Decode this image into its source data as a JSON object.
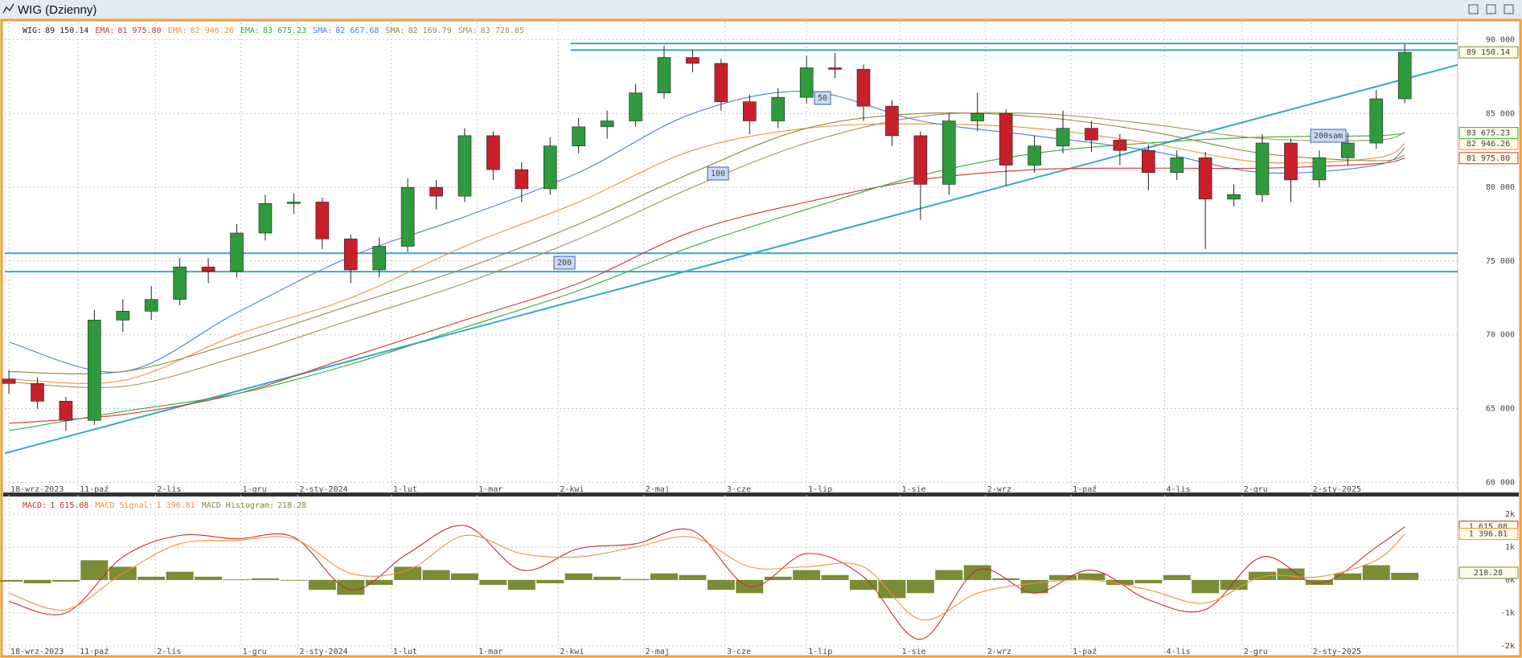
{
  "window": {
    "title": "WIG (Dzienny)"
  },
  "chart_data": [
    {
      "type": "candlestick",
      "name": "WIG:",
      "x": [
        0,
        7,
        14,
        21,
        28,
        35,
        42,
        49,
        56,
        63,
        70,
        77,
        84,
        91,
        98,
        105,
        112,
        119,
        126,
        133,
        140,
        147,
        154,
        161,
        168,
        175,
        182,
        189,
        196,
        203,
        210,
        217,
        224,
        231,
        238,
        245,
        252,
        259,
        266,
        273,
        280,
        287,
        294,
        301,
        308,
        315,
        322,
        329,
        336,
        343
      ],
      "open": [
        67000,
        66700,
        65500,
        64200,
        71000,
        71600,
        72400,
        74600,
        74300,
        76900,
        78900,
        79000,
        76500,
        74400,
        76000,
        80000,
        79400,
        83500,
        81200,
        79900,
        82800,
        84100,
        84500,
        86400,
        88800,
        88400,
        85800,
        84500,
        86100,
        88100,
        88000,
        85500,
        83500,
        80200,
        84500,
        85000,
        81500,
        82800,
        84000,
        83200,
        82500,
        81000,
        82000,
        79200,
        79500,
        83000,
        80500,
        82000,
        83000,
        86000
      ],
      "high": [
        67600,
        67100,
        65800,
        71700,
        72400,
        73300,
        75200,
        75200,
        77500,
        79500,
        79600,
        79300,
        76800,
        76600,
        80600,
        80500,
        84000,
        83800,
        81700,
        83400,
        84700,
        85200,
        87000,
        89600,
        89300,
        88700,
        86300,
        86700,
        88900,
        89100,
        88300,
        85900,
        83800,
        85000,
        86400,
        85300,
        83500,
        85200,
        84500,
        83600,
        82900,
        82500,
        82400,
        80200,
        83600,
        83300,
        82500,
        83700,
        86600,
        89700
      ],
      "low": [
        66000,
        65000,
        63500,
        63900,
        70200,
        71000,
        72000,
        73500,
        73900,
        76400,
        78200,
        75800,
        73500,
        73900,
        75600,
        78500,
        79000,
        80500,
        79000,
        79500,
        82300,
        83300,
        84100,
        86000,
        87800,
        85200,
        83600,
        84000,
        85700,
        87400,
        84500,
        82800,
        77800,
        79500,
        83800,
        80100,
        81000,
        82300,
        82400,
        81500,
        79800,
        80500,
        75800,
        78700,
        79000,
        79000,
        80000,
        81500,
        82600,
        85700
      ],
      "close": [
        66700,
        65500,
        64200,
        71000,
        71600,
        72400,
        74600,
        74300,
        76900,
        78900,
        79000,
        76500,
        74400,
        76000,
        80000,
        79400,
        83500,
        81200,
        79900,
        82800,
        84100,
        84500,
        86400,
        88800,
        88400,
        85800,
        84500,
        86100,
        88100,
        88000,
        85500,
        83500,
        80200,
        84500,
        85000,
        81500,
        82800,
        84000,
        83200,
        82500,
        81000,
        82000,
        79200,
        79500,
        83000,
        80500,
        82000,
        83000,
        86000,
        89150.14
      ],
      "up_color": "#2e9a3c",
      "down_color": "#c8202a",
      "last": {
        "value": 89150.14,
        "label": "89 150.14"
      },
      "overlays": [
        {
          "name": "EMA:",
          "color": "#d03535",
          "axis_box": true,
          "x": [
            0,
            28,
            56,
            84,
            112,
            140,
            168,
            196,
            224,
            252,
            280,
            308,
            336,
            343
          ],
          "values": [
            64000,
            64600,
            66000,
            68500,
            71000,
            73500,
            77000,
            79000,
            80500,
            81200,
            81300,
            81300,
            81600,
            81975.8
          ],
          "last": {
            "value": 81975.8,
            "label": "81 975.80"
          }
        },
        {
          "name": "EMA:",
          "color": "#f0903c",
          "axis_box": true,
          "x": [
            0,
            28,
            56,
            84,
            112,
            140,
            168,
            196,
            224,
            252,
            280,
            308,
            336,
            343
          ],
          "values": [
            67000,
            66900,
            70000,
            72500,
            76000,
            79000,
            82500,
            84000,
            84300,
            84000,
            83000,
            81700,
            82000,
            82946.26
          ],
          "last": {
            "value": 82946.26,
            "label": "82 946.26"
          }
        },
        {
          "name": "EMA:",
          "color": "#35a83a",
          "axis_box": true,
          "x": [
            0,
            28,
            56,
            84,
            112,
            140,
            168,
            196,
            224,
            252,
            280,
            308,
            336,
            343
          ],
          "values": [
            63500,
            64800,
            66000,
            68000,
            70500,
            73000,
            76000,
            78500,
            80800,
            82300,
            83000,
            83400,
            83500,
            83675.23
          ],
          "last": {
            "value": 83675.23,
            "label": "83 675.23"
          }
        },
        {
          "name": "SMA:",
          "color": "#4a82cc",
          "axis_box": false,
          "x": [
            0,
            28,
            56,
            84,
            112,
            140,
            168,
            196,
            224,
            252,
            280,
            308,
            336,
            343
          ],
          "values": [
            69500,
            67500,
            71500,
            75300,
            78000,
            81000,
            85000,
            86500,
            84500,
            83500,
            82500,
            81000,
            81500,
            82667.68
          ],
          "last": {
            "value": 82667.68,
            "label": "82 667.68"
          }
        },
        {
          "name": "SMA:",
          "color": "#8a8a3c",
          "axis_box": false,
          "x": [
            0,
            28,
            56,
            84,
            112,
            140,
            168,
            196,
            224,
            252,
            280,
            308,
            336,
            343
          ],
          "values": [
            67500,
            67500,
            69500,
            72000,
            74500,
            77500,
            81000,
            84000,
            85000,
            84800,
            83800,
            82300,
            81800,
            82169.79
          ],
          "last": {
            "value": 82169.79,
            "label": "82 169.79"
          }
        },
        {
          "name": "SMA:",
          "color": "#a88e5a",
          "axis_box": false,
          "x": [
            0,
            28,
            56,
            84,
            112,
            140,
            168,
            196,
            224,
            252,
            280,
            308,
            336,
            343
          ],
          "values": [
            66800,
            66500,
            68500,
            71000,
            73500,
            76500,
            80000,
            83000,
            84800,
            85000,
            84300,
            83300,
            83200,
            83728.85
          ],
          "last": {
            "value": 83728.85,
            "label": "83 728.85"
          }
        }
      ],
      "lines": [
        {
          "x": [
            -1,
            356
          ],
          "y": [
            61970,
            88300
          ]
        },
        {
          "x": [
            138,
            356
          ],
          "y": [
            89750,
            89750
          ]
        },
        {
          "x": [
            138,
            356
          ],
          "y": [
            89300,
            89300
          ]
        },
        {
          "x": [
            -1,
            356
          ],
          "y": [
            75530,
            75530
          ]
        },
        {
          "x": [
            -1,
            356
          ],
          "y": [
            74280,
            74280
          ]
        }
      ],
      "line_color": "#35a8c8",
      "annotations": [
        "50",
        "100",
        "200",
        "200sam"
      ],
      "xlim": [
        -1,
        356
      ],
      "xticks": [
        {
          "value": 0,
          "label": "18-wrz-2023"
        },
        {
          "value": 17,
          "label": "11-paź"
        },
        {
          "value": 36,
          "label": "2-lis"
        },
        {
          "value": 57,
          "label": "1-gru"
        },
        {
          "value": 71,
          "label": "2-sty-2024"
        },
        {
          "value": 94,
          "label": "1-lut"
        },
        {
          "value": 115,
          "label": "1-mar"
        },
        {
          "value": 135,
          "label": "2-kwi"
        },
        {
          "value": 156,
          "label": "2-maj"
        },
        {
          "value": 176,
          "label": "3-cze"
        },
        {
          "value": 196,
          "label": "1-lip"
        },
        {
          "value": 219,
          "label": "1-sie"
        },
        {
          "value": 240,
          "label": "2-wrz"
        },
        {
          "value": 261,
          "label": "1-paź"
        },
        {
          "value": 284,
          "label": "4-lis"
        },
        {
          "value": 303,
          "label": "2-gru"
        },
        {
          "value": 320,
          "label": "2-sty-2025"
        }
      ],
      "ylim": [
        59800,
        90900
      ],
      "yticks": [
        {
          "value": 60000,
          "label": "60 000"
        },
        {
          "value": 65000,
          "label": "65 000"
        },
        {
          "value": 70000,
          "label": "70 000"
        },
        {
          "value": 75000,
          "label": "75 000"
        },
        {
          "value": 80000,
          "label": "80 000"
        },
        {
          "value": 85000,
          "label": "85 000"
        },
        {
          "value": 90000,
          "label": "90 000"
        }
      ],
      "grid": true
    },
    {
      "type": "macd",
      "series": [
        {
          "name": "MACD:",
          "color": "#c03030",
          "x": [
            0,
            14,
            28,
            42,
            56,
            70,
            84,
            98,
            112,
            126,
            140,
            154,
            168,
            182,
            196,
            210,
            224,
            238,
            252,
            266,
            280,
            294,
            308,
            322,
            336,
            343
          ],
          "values": [
            -650,
            -1000,
            700,
            1350,
            1250,
            1300,
            -300,
            800,
            1650,
            300,
            950,
            1100,
            1500,
            -200,
            800,
            100,
            -1800,
            300,
            -400,
            300,
            -600,
            -900,
            700,
            -100,
            1000,
            1615.08
          ],
          "last": {
            "value": 1615.08,
            "label": "1 615.08"
          }
        },
        {
          "name": "MACD Signal:",
          "color": "#f0903c",
          "x": [
            0,
            14,
            28,
            42,
            56,
            70,
            84,
            98,
            112,
            126,
            140,
            154,
            168,
            182,
            196,
            210,
            224,
            238,
            252,
            266,
            280,
            294,
            308,
            322,
            336,
            343
          ],
          "values": [
            -400,
            -900,
            200,
            1100,
            1200,
            1250,
            200,
            300,
            1350,
            800,
            700,
            1000,
            1300,
            400,
            400,
            400,
            -1200,
            -400,
            -100,
            0,
            -300,
            -700,
            100,
            100,
            600,
            1396.81
          ],
          "last": {
            "value": 1396.81,
            "label": "1 396.81"
          }
        },
        {
          "name": "MACD Histogram:",
          "color": "#7a8c34",
          "type": "bar",
          "x": [
            0,
            7,
            14,
            21,
            28,
            35,
            42,
            49,
            56,
            63,
            70,
            77,
            84,
            91,
            98,
            105,
            112,
            119,
            126,
            133,
            140,
            147,
            154,
            161,
            168,
            175,
            182,
            189,
            196,
            203,
            210,
            217,
            224,
            231,
            238,
            245,
            252,
            259,
            266,
            273,
            280,
            287,
            294,
            301,
            308,
            315,
            322,
            329,
            336,
            343
          ],
          "values": [
            -50,
            -100,
            -50,
            600,
            400,
            100,
            250,
            100,
            20,
            50,
            -20,
            -300,
            -450,
            -150,
            400,
            300,
            200,
            -150,
            -300,
            -100,
            200,
            100,
            30,
            200,
            150,
            -300,
            -400,
            100,
            300,
            150,
            -300,
            -550,
            -400,
            300,
            450,
            50,
            -400,
            150,
            200,
            -150,
            -100,
            150,
            -400,
            -300,
            250,
            350,
            -150,
            200,
            450,
            218.28
          ],
          "last": {
            "value": 218.28,
            "label": "218.28"
          }
        }
      ],
      "xlim": [
        -1,
        356
      ],
      "xticks": [
        {
          "value": 0,
          "label": "18-wrz-2023"
        },
        {
          "value": 17,
          "label": "11-paź"
        },
        {
          "value": 36,
          "label": "2-lis"
        },
        {
          "value": 57,
          "label": "1-gru"
        },
        {
          "value": 71,
          "label": "2-sty-2024"
        },
        {
          "value": 94,
          "label": "1-lut"
        },
        {
          "value": 115,
          "label": "1-mar"
        },
        {
          "value": 135,
          "label": "2-kwi"
        },
        {
          "value": 156,
          "label": "2-maj"
        },
        {
          "value": 176,
          "label": "3-cze"
        },
        {
          "value": 196,
          "label": "1-lip"
        },
        {
          "value": 219,
          "label": "1-sie"
        },
        {
          "value": 240,
          "label": "2-wrz"
        },
        {
          "value": 261,
          "label": "1-paź"
        },
        {
          "value": 284,
          "label": "4-lis"
        },
        {
          "value": 303,
          "label": "2-gru"
        },
        {
          "value": 320,
          "label": "2-sty-2025"
        }
      ],
      "ylim": [
        -2050,
        2460
      ],
      "yticks": [
        {
          "value": 2000,
          "label": "2k"
        },
        {
          "value": 1000,
          "label": "1k"
        },
        {
          "value": 0,
          "label": "0k"
        },
        {
          "value": -1000,
          "label": "-1k"
        },
        {
          "value": -2000,
          "label": "-2k"
        }
      ],
      "grid": true
    }
  ]
}
